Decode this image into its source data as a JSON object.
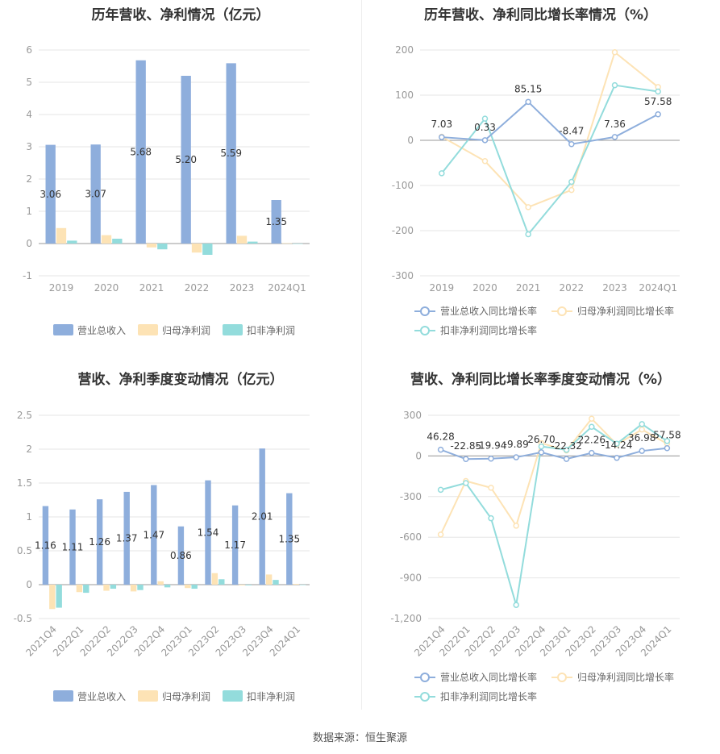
{
  "source_text": "数据来源：恒生聚源",
  "colors": {
    "revenue": "#8eaedc",
    "net_profit": "#fde3b5",
    "deducted_net_profit": "#93dcdc",
    "axis_text": "#999999",
    "grid": "#e6e6e6"
  },
  "chart_data": [
    {
      "type": "bar",
      "title": "历年营收、净利情况（亿元）",
      "categories": [
        "2019",
        "2020",
        "2021",
        "2022",
        "2023",
        "2024Q1"
      ],
      "ylim": [
        -1,
        6
      ],
      "yticks": [
        -1,
        0,
        1,
        2,
        3,
        4,
        5,
        6
      ],
      "series": [
        {
          "name": "营业总收入",
          "values": [
            3.06,
            3.07,
            5.68,
            5.2,
            5.59,
            1.35
          ],
          "labels": [
            "3.06",
            "3.07",
            "5.68",
            "5.20",
            "5.59",
            "1.35"
          ]
        },
        {
          "name": "归母净利润",
          "values": [
            0.48,
            0.26,
            -0.12,
            -0.28,
            0.24,
            0.01
          ]
        },
        {
          "name": "扣非净利润",
          "values": [
            0.09,
            0.15,
            -0.18,
            -0.35,
            0.06,
            0.0
          ]
        }
      ],
      "legend": "bottom"
    },
    {
      "type": "line",
      "title": "历年营收、净利同比增长率情况（%）",
      "categories": [
        "2019",
        "2020",
        "2021",
        "2022",
        "2023",
        "2024Q1"
      ],
      "ylim": [
        -300,
        200
      ],
      "yticks": [
        -300,
        -200,
        -100,
        0,
        100,
        200
      ],
      "series": [
        {
          "name": "营业总收入同比增长率",
          "values": [
            7.03,
            0.33,
            85.15,
            -8.47,
            7.36,
            57.58
          ],
          "labels": [
            "7.03",
            "0.33",
            "85.15",
            "-8.47",
            "7.36",
            "57.58"
          ]
        },
        {
          "name": "归母净利润同比增长率",
          "values": [
            8,
            -46,
            -148,
            -110,
            195,
            118
          ]
        },
        {
          "name": "扣非净利润同比增长率",
          "values": [
            -73,
            48,
            -208,
            -92,
            122,
            108
          ]
        }
      ],
      "legend": "bottom"
    },
    {
      "type": "bar",
      "title": "营收、净利季度变动情况（亿元）",
      "categories": [
        "2021Q4",
        "2022Q1",
        "2022Q2",
        "2022Q3",
        "2022Q4",
        "2023Q1",
        "2023Q2",
        "2023Q3",
        "2023Q4",
        "2024Q1"
      ],
      "ylim": [
        -0.5,
        2.5
      ],
      "yticks": [
        "-0.5",
        "0",
        "0.5",
        "1",
        "1.5",
        "2",
        "2.5"
      ],
      "series": [
        {
          "name": "营业总收入",
          "values": [
            1.16,
            1.11,
            1.26,
            1.37,
            1.47,
            0.86,
            1.54,
            1.17,
            2.01,
            1.35
          ],
          "labels": [
            "1.16",
            "1.11",
            "1.26",
            "1.37",
            "1.47",
            "0.86",
            "1.54",
            "1.17",
            "2.01",
            "1.35"
          ]
        },
        {
          "name": "归母净利润",
          "values": [
            -0.36,
            -0.11,
            -0.09,
            -0.1,
            0.05,
            -0.05,
            0.17,
            -0.01,
            0.15,
            0.01
          ]
        },
        {
          "name": "扣非净利润",
          "values": [
            -0.34,
            -0.12,
            -0.06,
            -0.08,
            -0.04,
            -0.06,
            0.08,
            -0.01,
            0.07,
            0.0
          ]
        }
      ],
      "legend": "bottom"
    },
    {
      "type": "line",
      "title": "营收、净利同比增长率季度变动情况（%）",
      "categories": [
        "2021Q4",
        "2022Q1",
        "2022Q2",
        "2022Q3",
        "2022Q4",
        "2023Q1",
        "2023Q2",
        "2023Q3",
        "2023Q4",
        "2024Q1"
      ],
      "ylim": [
        -1200,
        300
      ],
      "yticks": [
        "-1,200",
        "-900",
        "-600",
        "-300",
        "0",
        "300"
      ],
      "ytick_values": [
        -1200,
        -900,
        -600,
        -300,
        0,
        300
      ],
      "series": [
        {
          "name": "营业总收入同比增长率",
          "values": [
            46.28,
            -22.85,
            -19.94,
            -9.89,
            26.7,
            -22.32,
            22.26,
            -14.24,
            36.98,
            57.58
          ],
          "labels": [
            "46.28",
            "-22.85",
            "-19.94",
            "-9.89",
            "26.70",
            "-22.32",
            "22.26",
            "-14.24",
            "36.98",
            "57.58"
          ]
        },
        {
          "name": "归母净利润同比增长率",
          "values": [
            -580,
            -185,
            -235,
            -515,
            95,
            40,
            275,
            85,
            195,
            90
          ]
        },
        {
          "name": "扣非净利润同比增长率",
          "values": [
            -250,
            -200,
            -460,
            -1100,
            70,
            45,
            215,
            90,
            235,
            110
          ]
        }
      ],
      "legend": "bottom"
    }
  ]
}
